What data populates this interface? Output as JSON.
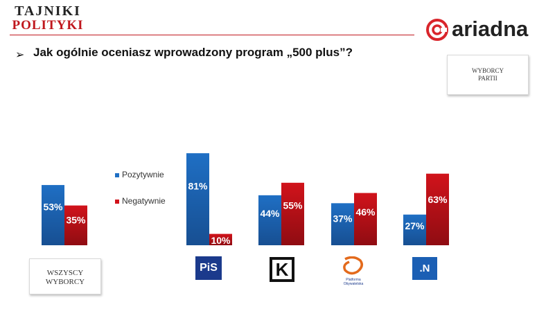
{
  "header": {
    "brand_line1": "TAJNIKI",
    "brand_line2": "POLITYKI",
    "ariadna_name": "ariadna",
    "question_arrow": "➢",
    "question": "Jak ogólnie oceniasz wprowadzony program „500 plus”?"
  },
  "labels": {
    "parties_box": [
      "WYBORCY",
      "PARTII"
    ],
    "all_box": [
      "WSZYSCY",
      "WYBORCY"
    ]
  },
  "legend": {
    "positive": "Pozytywnie",
    "negative": "Negatywnie"
  },
  "party_logos": {
    "pis": "PiS",
    "kukiz": "K",
    "po": [
      "Platforma",
      "Obywatelska"
    ],
    "nowoczesna": ".N"
  },
  "colors": {
    "positive": "#1f6fc4",
    "negative": "#d1131b",
    "brand_red": "#c0171d",
    "accent_red": "#d9252b"
  },
  "chart_data": {
    "type": "bar",
    "categories": [
      "WSZYSCY WYBORCY",
      "PiS",
      "Kukiz'15",
      "Platforma Obywatelska",
      "Nowoczesna"
    ],
    "series": [
      {
        "name": "Pozytywnie",
        "values": [
          53,
          81,
          44,
          37,
          27
        ]
      },
      {
        "name": "Negatywnie",
        "values": [
          35,
          10,
          55,
          46,
          63
        ]
      }
    ],
    "value_labels": {
      "Pozytywnie": [
        "53%",
        "81%",
        "44%",
        "37%",
        "27%"
      ],
      "Negatywnie": [
        "35%",
        "10%",
        "55%",
        "46%",
        "63%"
      ]
    },
    "ylim": [
      0,
      100
    ],
    "unit": "%",
    "legend_position": "left",
    "grid": false
  }
}
